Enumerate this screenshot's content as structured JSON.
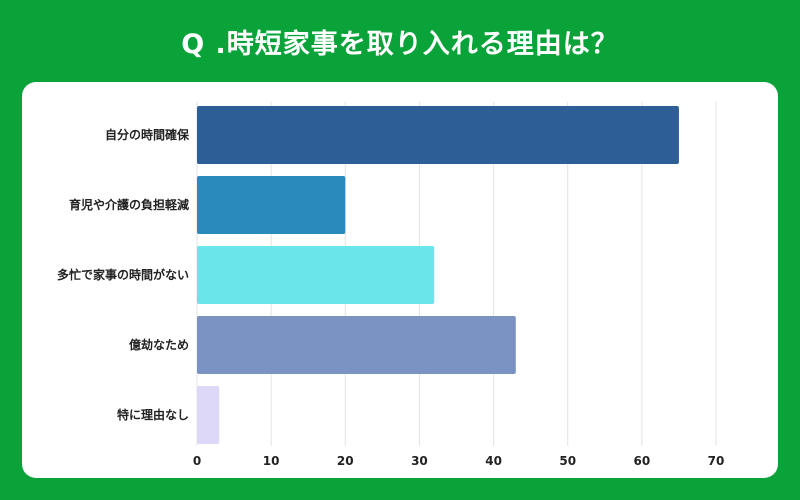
{
  "title": "Q .時短家事を取り入れる理由は？",
  "colors": {
    "background": "#0aa33a",
    "card": "#ffffff"
  },
  "chart_data": {
    "type": "bar",
    "orientation": "horizontal",
    "categories": [
      "自分の時間確保",
      "育児や介護の負担軽減",
      "多忙で家事の時間がない",
      "億劫なため",
      "特に理由なし"
    ],
    "values": [
      65,
      20,
      32,
      43,
      3
    ],
    "colors": [
      "#2e5e96",
      "#2a8bbb",
      "#6ae5ea",
      "#7b93c3",
      "#ddd8f8"
    ],
    "xlim": [
      0,
      70
    ],
    "x_ticks": [
      0,
      10,
      20,
      30,
      40,
      50,
      60,
      70
    ],
    "grid": true
  }
}
